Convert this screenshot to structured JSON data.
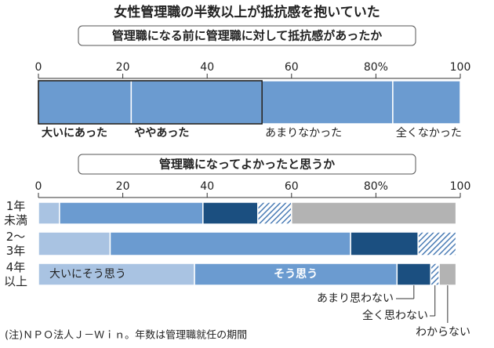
{
  "title": "女性管理職の半数以上が抵抗感を抱いていた",
  "note": "(注)ＮＰＯ法人Ｊ－Ｗｉｎ。年数は管理職就任の期間",
  "chart_data": [
    {
      "type": "bar",
      "orientation": "horizontal",
      "stacked": true,
      "subtitle": "管理職になる前に管理職に対して抵抗感があったか",
      "categories": [
        null
      ],
      "xlim": [
        0,
        100
      ],
      "xticks": [
        0,
        20,
        40,
        60,
        {
          "value": 80,
          "label": "80%"
        },
        100
      ],
      "series": [
        {
          "name": "大いにあった",
          "color": "#6b9bd0",
          "emphasis": true,
          "values": [
            22
          ]
        },
        {
          "name": "ややあった",
          "color": "#6b9bd0",
          "emphasis": true,
          "values": [
            31
          ]
        },
        {
          "name": "あまりなかった",
          "color": "#6b9bd0",
          "emphasis": false,
          "values": [
            31
          ]
        },
        {
          "name": "全くなかった",
          "color": "#6b9bd0",
          "emphasis": false,
          "values": [
            16
          ]
        }
      ]
    },
    {
      "type": "bar",
      "orientation": "horizontal",
      "stacked": true,
      "subtitle": "管理職になってよかったと思うか",
      "categories": [
        "1年未満",
        "2〜3年",
        "4年以上"
      ],
      "xlim": [
        0,
        100
      ],
      "xticks": [
        0,
        20,
        40,
        60,
        {
          "value": 80,
          "label": "80%"
        },
        100
      ],
      "series": [
        {
          "name": "大いにそう思う",
          "color": "#a9c3e2",
          "pattern": "solid",
          "values": [
            5,
            17,
            37
          ]
        },
        {
          "name": "そう思う",
          "color": "#6b9bd0",
          "pattern": "solid",
          "values": [
            34,
            57,
            48
          ]
        },
        {
          "name": "あまり思わない",
          "color": "#1b4f80",
          "pattern": "solid",
          "values": [
            13,
            16,
            8
          ]
        },
        {
          "name": "全く思わない",
          "color": "#4a7cb5",
          "pattern": "hatch",
          "values": [
            8,
            9,
            2
          ]
        },
        {
          "name": "わからない",
          "color": "#b3b3b3",
          "pattern": "solid",
          "values": [
            39,
            0,
            4
          ]
        }
      ]
    }
  ]
}
